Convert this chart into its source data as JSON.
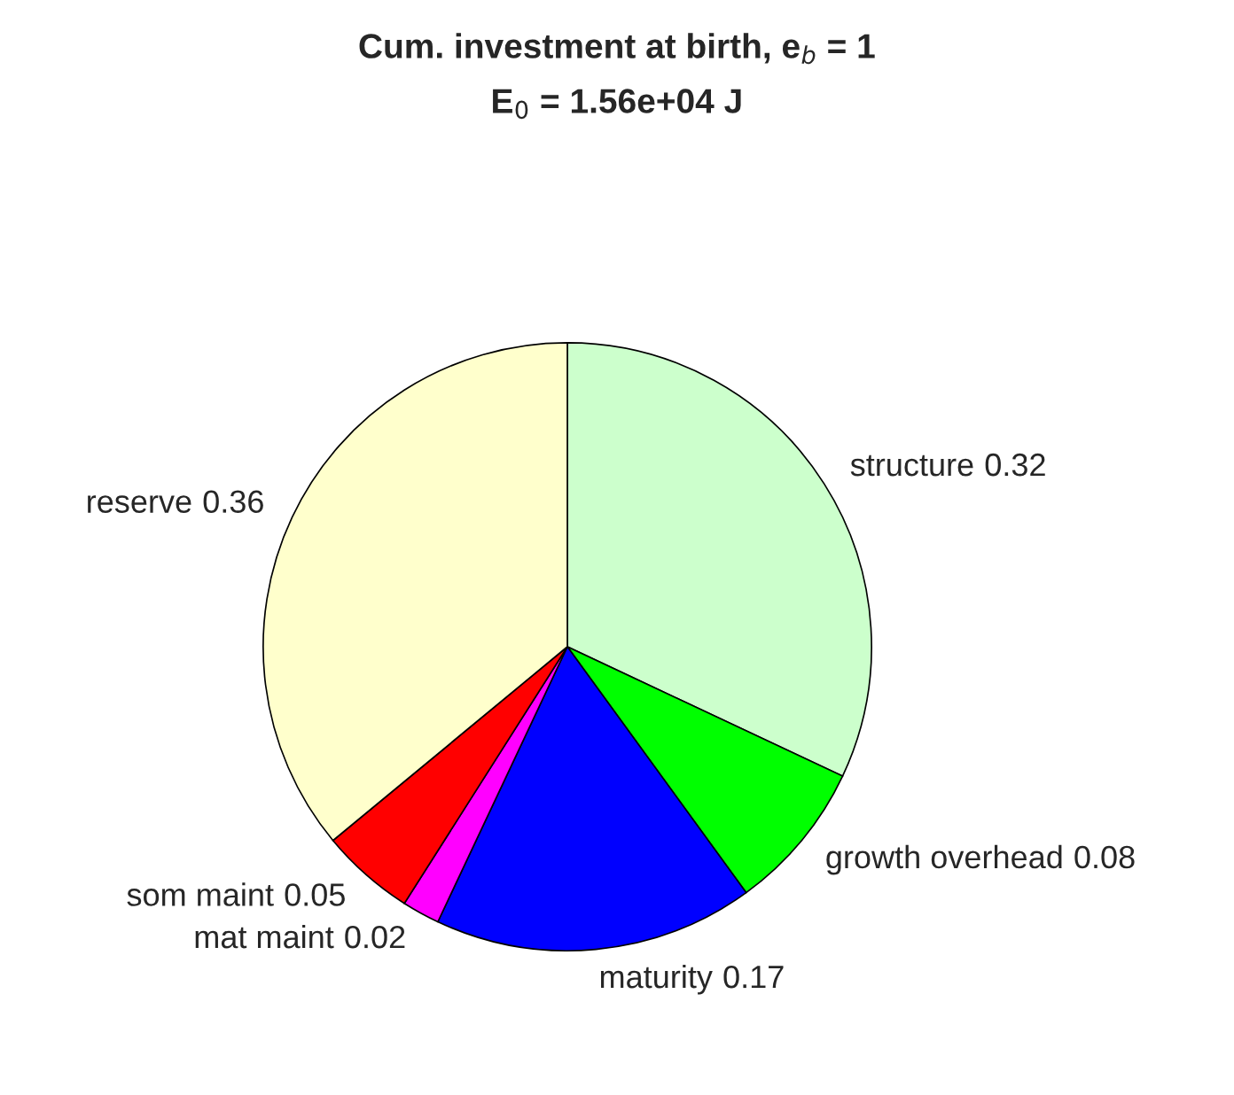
{
  "chart_data": {
    "type": "pie",
    "title": "Cum. investment at birth, e$_{b}$ = 1",
    "subtitle": "E$_{0}$ = 1.56e+04 J",
    "categories": [
      "structure",
      "growth overhead",
      "maturity",
      "mat maint",
      "som maint",
      "reserve"
    ],
    "values": [
      0.32,
      0.08,
      0.17,
      0.02,
      0.05,
      0.36
    ],
    "colors": [
      "#ccffcc",
      "#00ff00",
      "#0000ff",
      "#ff00ff",
      "#ff0000",
      "#ffffcc"
    ],
    "data_labels": true
  }
}
